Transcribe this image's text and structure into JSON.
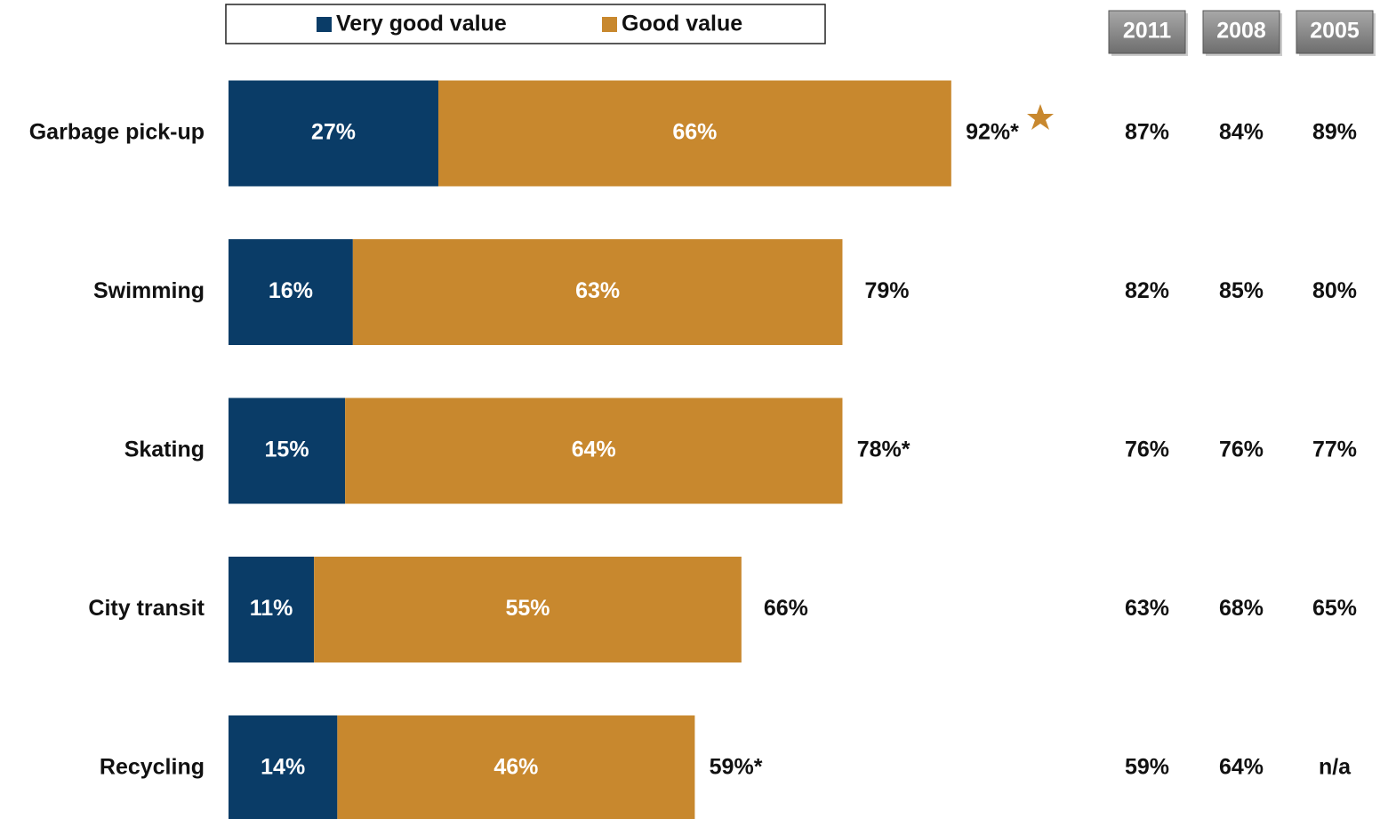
{
  "chart_data": {
    "type": "stacked-bar-horizontal",
    "categories": [
      "Garbage pick-up",
      "Swimming",
      "Skating",
      "City transit",
      "Recycling"
    ],
    "series": [
      {
        "name": "Very good value",
        "color": "#0a3c67",
        "values": [
          27,
          16,
          15,
          11,
          14
        ],
        "value_labels": [
          "27%",
          "16%",
          "15%",
          "11%",
          "14%"
        ]
      },
      {
        "name": "Good value",
        "color": "#c8882e",
        "values": [
          66,
          63,
          64,
          55,
          46
        ],
        "value_labels": [
          "66%",
          "63%",
          "64%",
          "55%",
          "46%"
        ]
      }
    ],
    "totals": [
      92,
      79,
      78,
      66,
      59
    ],
    "total_labels": [
      "92%*",
      "79%",
      "78%*",
      "66%",
      "59%*"
    ],
    "comparison": {
      "headers": [
        "2011",
        "2008",
        "2005"
      ],
      "rows": [
        [
          "87%",
          "84%",
          "89%"
        ],
        [
          "82%",
          "85%",
          "80%"
        ],
        [
          "76%",
          "76%",
          "77%"
        ],
        [
          "63%",
          "68%",
          "65%"
        ],
        [
          "59%",
          "64%",
          "n/a"
        ]
      ]
    }
  }
}
